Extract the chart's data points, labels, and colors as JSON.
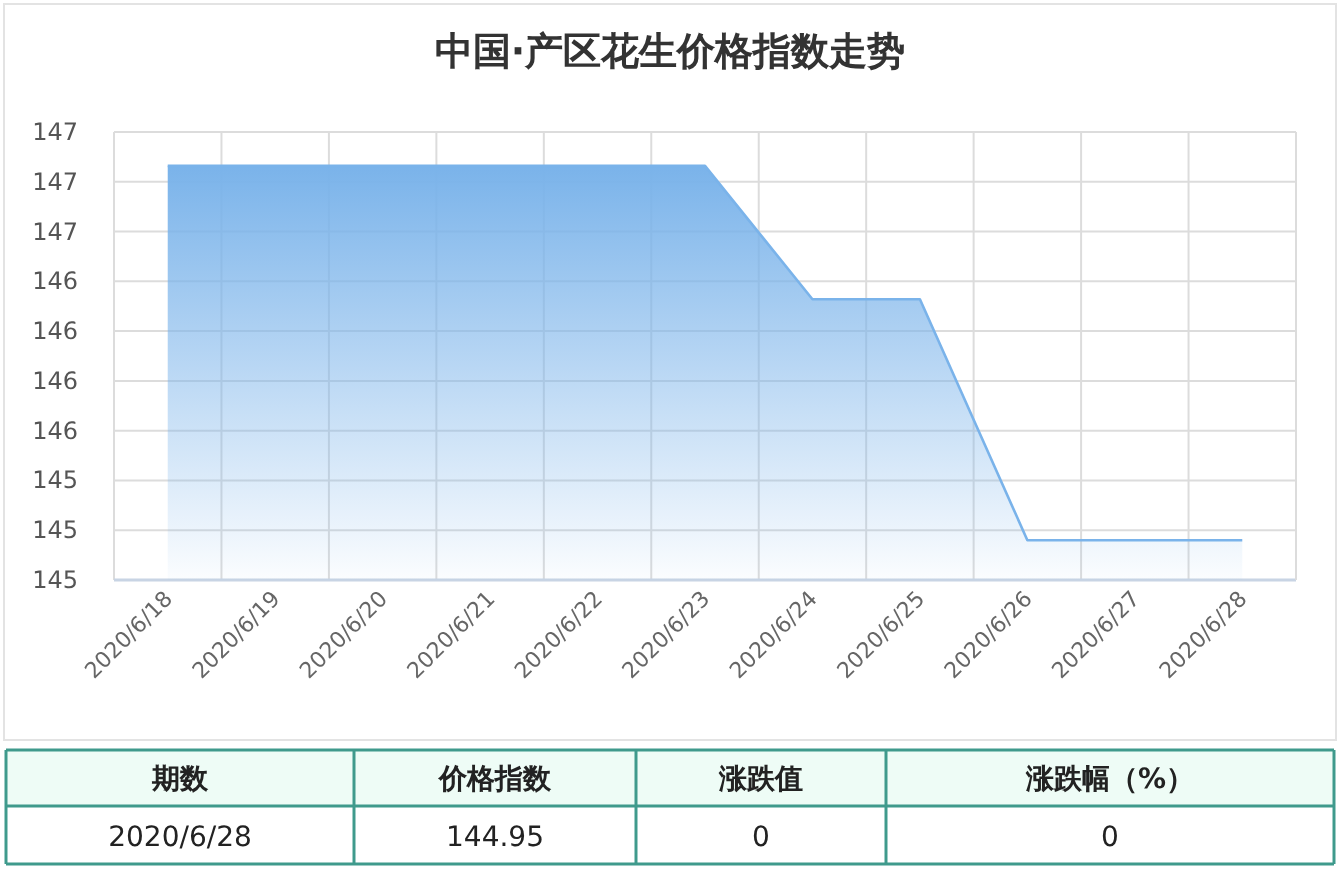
{
  "chart_data": [
    {
      "type": "area",
      "title": "中国·产区花生价格指数走势",
      "categories": [
        "2020/6/18",
        "2020/6/19",
        "2020/6/20",
        "2020/6/21",
        "2020/6/22",
        "2020/6/23",
        "2020/6/24",
        "2020/6/25",
        "2020/6/26",
        "2020/6/27",
        "2020/6/28"
      ],
      "series": [
        {
          "color": "#7ab3ea",
          "values": [
            146.83,
            146.83,
            146.83,
            146.83,
            146.83,
            146.83,
            146.16,
            146.16,
            144.95,
            144.95,
            144.95
          ]
        }
      ],
      "ylim": [
        144.75,
        147
      ],
      "yticks": [
        {
          "value": 144.75,
          "label": "145"
        },
        {
          "value": 145,
          "label": "145"
        },
        {
          "value": 145.25,
          "label": "145"
        },
        {
          "value": 145.5,
          "label": "146"
        },
        {
          "value": 145.75,
          "label": "146"
        },
        {
          "value": 146,
          "label": "146"
        },
        {
          "value": 146.25,
          "label": "146"
        },
        {
          "value": 146.5,
          "label": "147"
        },
        {
          "value": 146.75,
          "label": "147"
        },
        {
          "value": 147,
          "label": "147"
        }
      ],
      "grid": true
    },
    {
      "type": "other",
      "categories": [
        "期数",
        "价格指数",
        "涨跌值",
        "涨跌幅（%）"
      ],
      "cell_labels": [
        [
          "2020/6/28",
          "144.95",
          "0",
          "0"
        ]
      ]
    }
  ]
}
